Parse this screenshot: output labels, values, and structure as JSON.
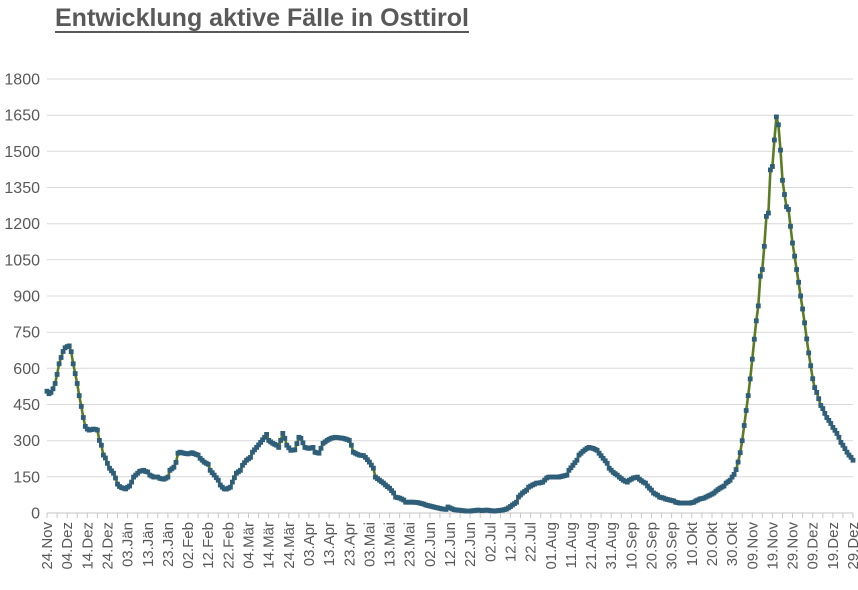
{
  "page": {
    "title": "Entwicklung aktive Fälle in Osttirol"
  },
  "chart_data": {
    "type": "line",
    "title": "Entwicklung aktive Fälle in Osttirol",
    "xlabel": "",
    "ylabel": "",
    "ylim": [
      0,
      1800
    ],
    "y_ticks": [
      0,
      150,
      300,
      450,
      600,
      750,
      900,
      1050,
      1200,
      1350,
      1500,
      1650,
      1800
    ],
    "grid": "horizontal",
    "legend": "none",
    "x_days_per_tick": 10,
    "x_tick_labels": [
      "24.Nov",
      "04.Dez",
      "14.Dez",
      "24.Dez",
      "03.Jän",
      "13.Jän",
      "23.Jän",
      "02.Feb",
      "12.Feb",
      "22.Feb",
      "04.Mär",
      "14.Mär",
      "24.Mär",
      "03.Apr",
      "13.Apr",
      "23.Apr",
      "03.Mai",
      "13.Mai",
      "23.Mai",
      "02.Jun",
      "12.Jun",
      "22.Jun",
      "02.Jul",
      "12.Jul",
      "22.Jul",
      "01.Aug",
      "11.Aug",
      "21.Aug",
      "31.Aug",
      "10.Sep",
      "20.Sep",
      "30.Sep",
      "10.Okt",
      "20.Okt",
      "30.Okt",
      "09.Nov",
      "19.Nov",
      "29.Nov",
      "09.Dez",
      "19.Dez",
      "29.Dez"
    ],
    "series": [
      {
        "marker": "square",
        "points": [
          [
            0,
            505
          ],
          [
            1,
            495
          ],
          [
            2,
            500
          ],
          [
            3,
            515
          ],
          [
            4,
            537
          ],
          [
            5,
            575
          ],
          [
            6,
            619
          ],
          [
            7,
            645
          ],
          [
            8,
            670
          ],
          [
            9,
            685
          ],
          [
            10,
            690
          ],
          [
            11,
            693
          ],
          [
            12,
            669
          ],
          [
            13,
            619
          ],
          [
            14,
            578
          ],
          [
            15,
            537
          ],
          [
            16,
            487
          ],
          [
            17,
            442
          ],
          [
            18,
            396
          ],
          [
            19,
            359
          ],
          [
            20,
            348
          ],
          [
            21,
            344
          ],
          [
            22,
            346
          ],
          [
            23,
            348
          ],
          [
            24,
            347
          ],
          [
            25,
            344
          ],
          [
            26,
            301
          ],
          [
            27,
            281
          ],
          [
            28,
            240
          ],
          [
            29,
            228
          ],
          [
            30,
            206
          ],
          [
            31,
            186
          ],
          [
            32,
            175
          ],
          [
            33,
            165
          ],
          [
            34,
            145
          ],
          [
            35,
            120
          ],
          [
            36,
            110
          ],
          [
            37,
            105
          ],
          [
            38,
            103
          ],
          [
            39,
            100
          ],
          [
            40,
            107
          ],
          [
            41,
            112
          ],
          [
            42,
            128
          ],
          [
            43,
            149
          ],
          [
            45,
            165
          ],
          [
            46,
            173
          ],
          [
            47,
            175
          ],
          [
            48,
            177
          ],
          [
            49,
            172
          ],
          [
            50,
            170
          ],
          [
            51,
            157
          ],
          [
            53,
            149
          ],
          [
            55,
            149
          ],
          [
            56,
            144
          ],
          [
            58,
            140
          ],
          [
            60,
            149
          ],
          [
            61,
            177
          ],
          [
            63,
            190
          ],
          [
            64,
            210
          ],
          [
            65,
            248
          ],
          [
            66,
            252
          ],
          [
            68,
            248
          ],
          [
            70,
            245
          ],
          [
            72,
            250
          ],
          [
            74,
            243
          ],
          [
            75,
            240
          ],
          [
            76,
            227
          ],
          [
            78,
            211
          ],
          [
            80,
            202
          ],
          [
            81,
            177
          ],
          [
            83,
            157
          ],
          [
            85,
            136
          ],
          [
            86,
            116
          ],
          [
            87,
            107
          ],
          [
            88,
            100
          ],
          [
            89,
            99
          ],
          [
            90,
            103
          ],
          [
            91,
            107
          ],
          [
            92,
            128
          ],
          [
            94,
            165
          ],
          [
            96,
            177
          ],
          [
            97,
            198
          ],
          [
            99,
            219
          ],
          [
            101,
            231
          ],
          [
            102,
            252
          ],
          [
            104,
            272
          ],
          [
            106,
            293
          ],
          [
            108,
            314
          ],
          [
            109,
            326
          ],
          [
            110,
            301
          ],
          [
            112,
            289
          ],
          [
            114,
            281
          ],
          [
            115,
            272
          ],
          [
            117,
            330
          ],
          [
            118,
            310
          ],
          [
            119,
            281
          ],
          [
            121,
            260
          ],
          [
            123,
            262
          ],
          [
            125,
            314
          ],
          [
            126,
            310
          ],
          [
            128,
            272
          ],
          [
            130,
            268
          ],
          [
            132,
            272
          ],
          [
            133,
            252
          ],
          [
            135,
            248
          ],
          [
            137,
            289
          ],
          [
            139,
            301
          ],
          [
            141,
            310
          ],
          [
            143,
            314
          ],
          [
            145,
            312
          ],
          [
            147,
            310
          ],
          [
            149,
            305
          ],
          [
            150,
            301
          ],
          [
            151,
            281
          ],
          [
            152,
            252
          ],
          [
            153,
            248
          ],
          [
            155,
            240
          ],
          [
            157,
            238
          ],
          [
            158,
            231
          ],
          [
            160,
            211
          ],
          [
            162,
            186
          ],
          [
            163,
            149
          ],
          [
            165,
            136
          ],
          [
            167,
            124
          ],
          [
            168,
            116
          ],
          [
            170,
            103
          ],
          [
            172,
            83
          ],
          [
            173,
            66
          ],
          [
            175,
            62
          ],
          [
            177,
            54
          ],
          [
            178,
            45
          ],
          [
            180,
            45
          ],
          [
            182,
            45
          ],
          [
            184,
            43
          ],
          [
            185,
            41
          ],
          [
            187,
            37
          ],
          [
            188,
            33
          ],
          [
            190,
            29
          ],
          [
            192,
            25
          ],
          [
            194,
            21
          ],
          [
            196,
            17
          ],
          [
            198,
            15
          ],
          [
            199,
            25
          ],
          [
            200,
            21
          ],
          [
            202,
            14
          ],
          [
            204,
            12
          ],
          [
            206,
            10
          ],
          [
            208,
            8
          ],
          [
            210,
            8
          ],
          [
            212,
            10
          ],
          [
            214,
            12
          ],
          [
            216,
            10
          ],
          [
            218,
            12
          ],
          [
            220,
            10
          ],
          [
            222,
            8
          ],
          [
            224,
            10
          ],
          [
            226,
            12
          ],
          [
            228,
            16
          ],
          [
            229,
            21
          ],
          [
            231,
            33
          ],
          [
            233,
            45
          ],
          [
            234,
            66
          ],
          [
            236,
            83
          ],
          [
            238,
            95
          ],
          [
            239,
            107
          ],
          [
            241,
            116
          ],
          [
            243,
            124
          ],
          [
            244,
            124
          ],
          [
            246,
            128
          ],
          [
            248,
            145
          ],
          [
            249,
            149
          ],
          [
            251,
            149
          ],
          [
            253,
            149
          ],
          [
            254,
            149
          ],
          [
            256,
            153
          ],
          [
            258,
            157
          ],
          [
            259,
            177
          ],
          [
            261,
            198
          ],
          [
            263,
            219
          ],
          [
            264,
            240
          ],
          [
            266,
            256
          ],
          [
            268,
            268
          ],
          [
            269,
            272
          ],
          [
            271,
            268
          ],
          [
            273,
            260
          ],
          [
            274,
            248
          ],
          [
            276,
            227
          ],
          [
            278,
            206
          ],
          [
            279,
            186
          ],
          [
            281,
            169
          ],
          [
            283,
            157
          ],
          [
            284,
            149
          ],
          [
            286,
            136
          ],
          [
            288,
            128
          ],
          [
            289,
            136
          ],
          [
            291,
            145
          ],
          [
            293,
            149
          ],
          [
            294,
            140
          ],
          [
            296,
            128
          ],
          [
            297,
            124
          ],
          [
            298,
            112
          ],
          [
            299,
            103
          ],
          [
            300,
            95
          ],
          [
            301,
            83
          ],
          [
            303,
            74
          ],
          [
            304,
            66
          ],
          [
            306,
            62
          ],
          [
            307,
            58
          ],
          [
            309,
            54
          ],
          [
            311,
            50
          ],
          [
            312,
            45
          ],
          [
            314,
            41
          ],
          [
            316,
            41
          ],
          [
            317,
            41
          ],
          [
            319,
            41
          ],
          [
            321,
            45
          ],
          [
            322,
            50
          ],
          [
            324,
            58
          ],
          [
            326,
            62
          ],
          [
            327,
            66
          ],
          [
            329,
            74
          ],
          [
            331,
            83
          ],
          [
            332,
            91
          ],
          [
            334,
            103
          ],
          [
            336,
            112
          ],
          [
            337,
            124
          ],
          [
            339,
            136
          ],
          [
            340,
            149
          ],
          [
            341,
            160
          ],
          [
            342,
            180
          ],
          [
            343,
            211
          ],
          [
            344,
            250
          ],
          [
            345,
            300
          ],
          [
            346,
            363
          ],
          [
            347,
            425
          ],
          [
            348,
            487
          ],
          [
            349,
            556
          ],
          [
            350,
            638
          ],
          [
            351,
            721
          ],
          [
            352,
            797
          ],
          [
            353,
            859
          ],
          [
            354,
            982
          ],
          [
            355,
            1010
          ],
          [
            356,
            1106
          ],
          [
            357,
            1230
          ],
          [
            358,
            1244
          ],
          [
            359,
            1423
          ],
          [
            360,
            1437
          ],
          [
            361,
            1547
          ],
          [
            362,
            1643
          ],
          [
            363,
            1610
          ],
          [
            364,
            1505
          ],
          [
            365,
            1380
          ],
          [
            366,
            1321
          ],
          [
            367,
            1270
          ],
          [
            368,
            1259
          ],
          [
            369,
            1189
          ],
          [
            370,
            1120
          ],
          [
            371,
            1065
          ],
          [
            372,
            1010
          ],
          [
            373,
            957
          ],
          [
            374,
            900
          ],
          [
            375,
            846
          ],
          [
            376,
            789
          ],
          [
            377,
            722
          ],
          [
            378,
            664
          ],
          [
            379,
            611
          ],
          [
            380,
            557
          ],
          [
            381,
            520
          ],
          [
            382,
            500
          ],
          [
            383,
            474
          ],
          [
            384,
            446
          ],
          [
            385,
            433
          ],
          [
            386,
            413
          ],
          [
            387,
            396
          ],
          [
            388,
            384
          ],
          [
            389,
            371
          ],
          [
            390,
            355
          ],
          [
            391,
            343
          ],
          [
            392,
            330
          ],
          [
            393,
            314
          ],
          [
            394,
            293
          ],
          [
            395,
            281
          ],
          [
            396,
            267
          ],
          [
            397,
            252
          ],
          [
            398,
            240
          ],
          [
            399,
            231
          ],
          [
            400,
            219
          ]
        ]
      }
    ],
    "colors": {
      "line": "#5a7d23",
      "marker": "#2f5e78",
      "grid": "#d9d9d9",
      "axis": "#c6c6c6",
      "text": "#595959",
      "title": "#595959"
    }
  }
}
